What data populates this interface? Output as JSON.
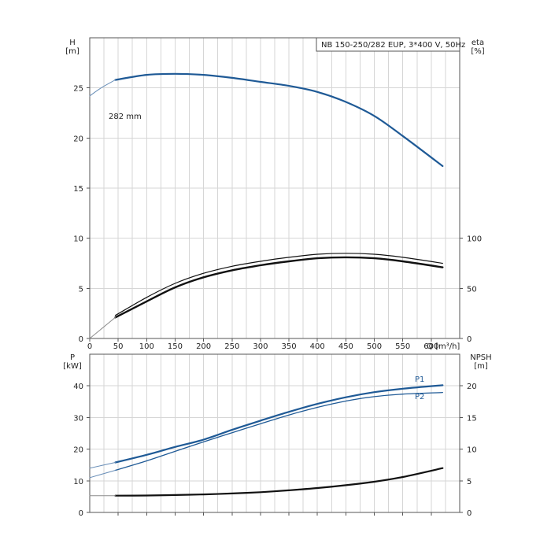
{
  "chart_data": [
    {
      "type": "line",
      "title": "NB 150-250/282 EUP, 3*400 V, 50Hz",
      "xlabel": "Q [m³/h]",
      "xlim": [
        0,
        650
      ],
      "x_ticks": [
        "0",
        "50",
        "100",
        "150",
        "200",
        "250",
        "300",
        "350",
        "400",
        "450",
        "500",
        "550",
        "600"
      ],
      "y_left_label": "H",
      "y_left_unit": "[m]",
      "y_left_lim": [
        0,
        30
      ],
      "y_left_ticks": [
        "0",
        "5",
        "10",
        "15",
        "20",
        "25"
      ],
      "y_right_label": "eta",
      "y_right_unit": "[%]",
      "y_right_lim": [
        0,
        300
      ],
      "y_right_ticks": [
        "0",
        "50",
        "100"
      ],
      "grid": true,
      "annotation": "282 mm",
      "series": [
        {
          "name": "H curve",
          "axis": "left",
          "color": "#1f5a96",
          "x": [
            45,
            100,
            150,
            200,
            250,
            300,
            350,
            400,
            450,
            500,
            550,
            620
          ],
          "y": [
            25.8,
            26.3,
            26.4,
            26.3,
            26.0,
            25.6,
            25.2,
            24.6,
            23.6,
            22.2,
            20.2,
            17.2
          ]
        },
        {
          "name": "H extension",
          "axis": "left",
          "color": "#6a8fb8",
          "x": [
            0,
            20,
            45
          ],
          "y": [
            24.2,
            25.0,
            25.8
          ]
        },
        {
          "name": "eta",
          "axis": "right",
          "color": "#111111",
          "x": [
            45,
            100,
            150,
            200,
            250,
            300,
            350,
            400,
            450,
            500,
            550,
            620
          ],
          "y": [
            21,
            37,
            51,
            61,
            68,
            73,
            77,
            80,
            81,
            80,
            77,
            71
          ]
        },
        {
          "name": "eta outline",
          "axis": "right",
          "color": "#111111",
          "x": [
            45,
            100,
            150,
            200,
            250,
            300,
            350,
            400,
            450,
            500,
            550,
            620
          ],
          "y": [
            23,
            41,
            55,
            65,
            72,
            77,
            81,
            84,
            85,
            84,
            81,
            75
          ]
        },
        {
          "name": "eta extension",
          "axis": "right",
          "color": "#8c8c8c",
          "x": [
            0,
            45
          ],
          "y": [
            0,
            21
          ]
        }
      ]
    },
    {
      "type": "line",
      "xlim": [
        0,
        650
      ],
      "y_left_label": "P",
      "y_left_unit": "[kW]",
      "y_left_lim": [
        0,
        50
      ],
      "y_left_ticks": [
        "0",
        "10",
        "20",
        "30",
        "40"
      ],
      "y_right_label": "NPSH",
      "y_right_unit": "[m]",
      "y_right_lim": [
        0,
        25
      ],
      "y_right_ticks": [
        "0",
        "5",
        "10",
        "15",
        "20"
      ],
      "grid": true,
      "series": [
        {
          "name": "P1",
          "axis": "left",
          "color": "#1f5a96",
          "x": [
            45,
            100,
            150,
            200,
            250,
            300,
            350,
            400,
            450,
            500,
            550,
            620
          ],
          "y": [
            15.8,
            18.2,
            20.7,
            23.0,
            26.1,
            29.0,
            31.8,
            34.3,
            36.4,
            38.0,
            39.1,
            40.2
          ]
        },
        {
          "name": "P1 extension",
          "axis": "left",
          "color": "#6a8fb8",
          "x": [
            0,
            45
          ],
          "y": [
            14.0,
            15.8
          ]
        },
        {
          "name": "P2",
          "axis": "left",
          "color": "#1f5a96",
          "x": [
            45,
            100,
            150,
            200,
            250,
            300,
            350,
            400,
            450,
            500,
            550,
            620
          ],
          "y": [
            13.3,
            16.3,
            19.3,
            22.3,
            25.2,
            28.0,
            30.8,
            33.2,
            35.2,
            36.6,
            37.4,
            37.9
          ]
        },
        {
          "name": "P2 extension",
          "axis": "left",
          "color": "#6a8fb8",
          "x": [
            0,
            45
          ],
          "y": [
            11.0,
            13.3
          ]
        },
        {
          "name": "NPSH",
          "axis": "right",
          "color": "#111111",
          "x": [
            45,
            100,
            150,
            200,
            250,
            300,
            350,
            400,
            450,
            500,
            550,
            620
          ],
          "y": [
            2.65,
            2.68,
            2.75,
            2.85,
            3.0,
            3.2,
            3.5,
            3.85,
            4.3,
            4.85,
            5.6,
            7.0
          ]
        },
        {
          "name": "NPSH extension",
          "axis": "right",
          "color": "#8c8c8c",
          "x": [
            0,
            45
          ],
          "y": [
            2.65,
            2.65
          ]
        }
      ],
      "labels": [
        "P1",
        "P2"
      ]
    }
  ]
}
